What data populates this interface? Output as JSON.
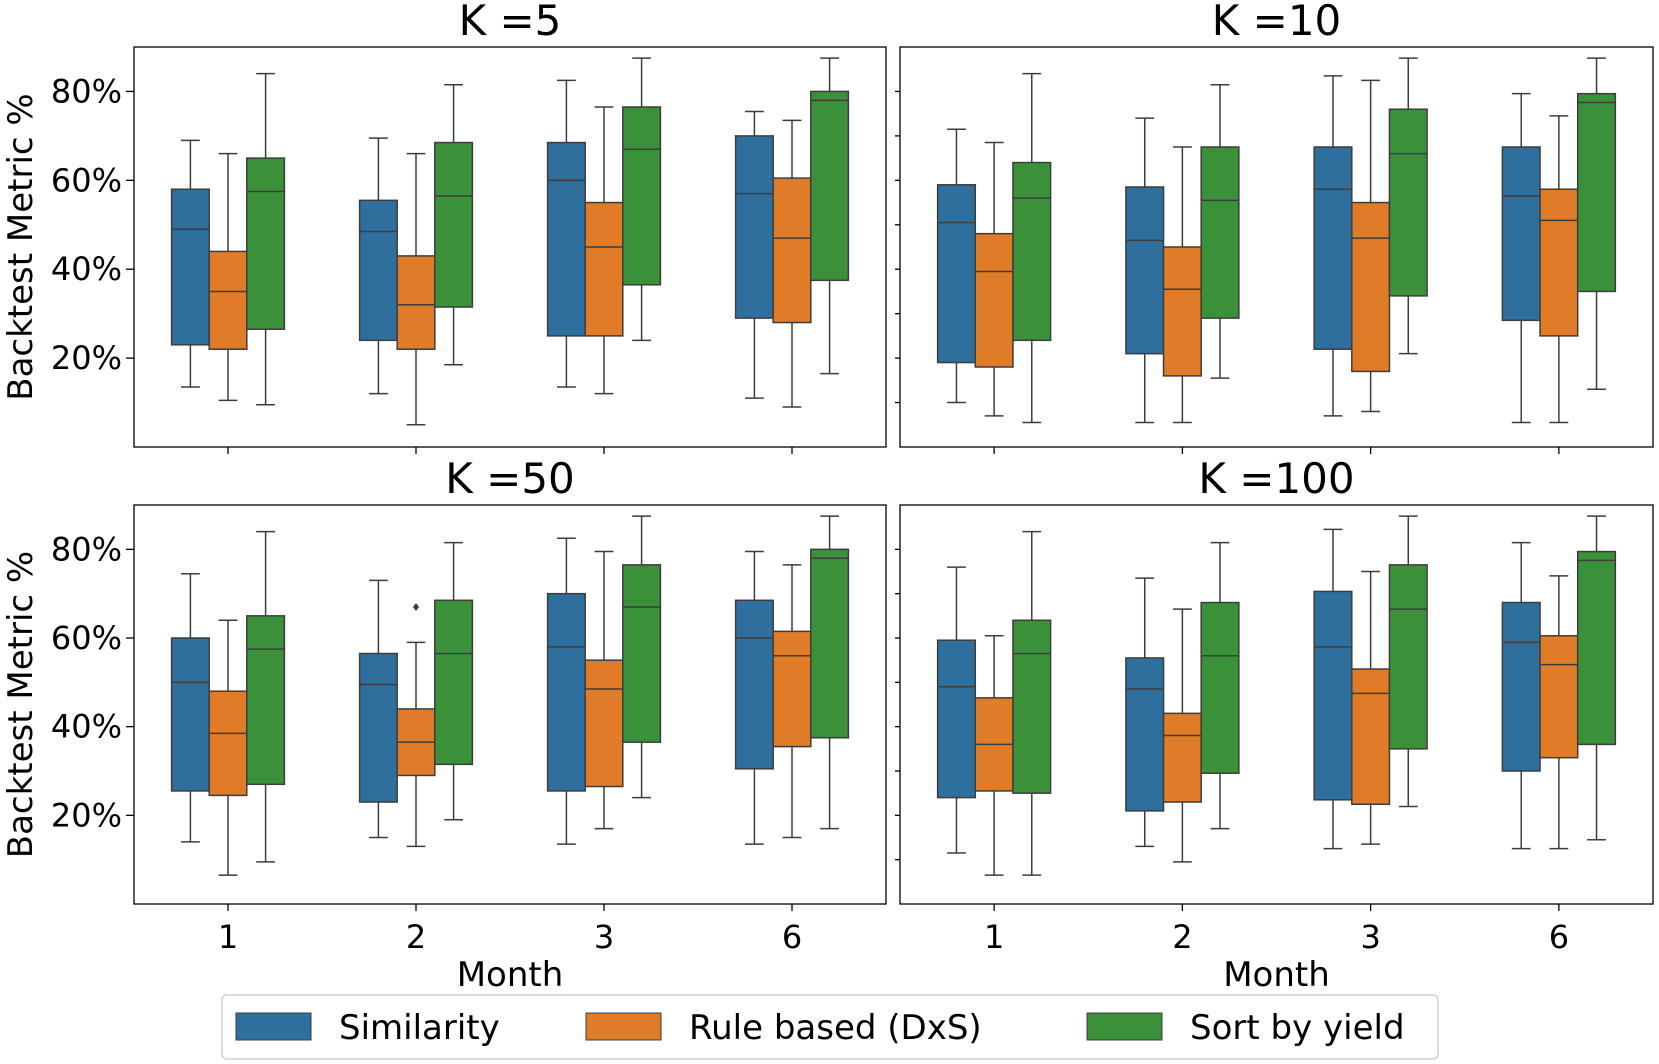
{
  "chart_data": {
    "type": "box",
    "ylabel": "Backtest Metric %",
    "xlabel": "Month",
    "categories": [
      "1",
      "2",
      "3",
      "6"
    ],
    "ylim": [
      0,
      90
    ],
    "yticks": [
      20,
      40,
      60,
      80
    ],
    "ytick_format": "{v}%",
    "colors": {
      "Similarity": "#2e6f9e",
      "Rule based (DxS)": "#e07b28",
      "Sort by yield": "#3a913a"
    },
    "series_names": [
      "Similarity",
      "Rule based (DxS)",
      "Sort by yield"
    ],
    "legend": {
      "placement": "bottom-center",
      "entries": [
        "Similarity",
        "Rule based (DxS)",
        "Sort by yield"
      ]
    },
    "panels": [
      {
        "title": "K =5",
        "boxes": [
          [
            {
              "whislo": 13.5,
              "q1": 23,
              "med": 49,
              "q3": 58,
              "whishi": 69
            },
            {
              "whislo": 10.5,
              "q1": 22,
              "med": 35,
              "q3": 44,
              "whishi": 66
            },
            {
              "whislo": 9.5,
              "q1": 26.5,
              "med": 57.5,
              "q3": 65,
              "whishi": 84
            }
          ],
          [
            {
              "whislo": 12,
              "q1": 24,
              "med": 48.5,
              "q3": 55.5,
              "whishi": 69.5
            },
            {
              "whislo": 5,
              "q1": 22,
              "med": 32,
              "q3": 43,
              "whishi": 66
            },
            {
              "whislo": 18.5,
              "q1": 31.5,
              "med": 56.5,
              "q3": 68.5,
              "whishi": 81.5
            }
          ],
          [
            {
              "whislo": 13.5,
              "q1": 25,
              "med": 60,
              "q3": 68.5,
              "whishi": 82.5
            },
            {
              "whislo": 12,
              "q1": 25,
              "med": 45,
              "q3": 55,
              "whishi": 76.5
            },
            {
              "whislo": 24,
              "q1": 36.5,
              "med": 67,
              "q3": 76.5,
              "whishi": 87.5
            }
          ],
          [
            {
              "whislo": 11,
              "q1": 29,
              "med": 57,
              "q3": 70,
              "whishi": 75.5
            },
            {
              "whislo": 9,
              "q1": 28,
              "med": 47,
              "q3": 60.5,
              "whishi": 73.5
            },
            {
              "whislo": 16.5,
              "q1": 37.5,
              "med": 78,
              "q3": 80,
              "whishi": 87.5
            }
          ]
        ],
        "outliers": []
      },
      {
        "title": "K =10",
        "boxes": [
          [
            {
              "whislo": 10,
              "q1": 19,
              "med": 50.5,
              "q3": 59,
              "whishi": 71.5
            },
            {
              "whislo": 7,
              "q1": 18,
              "med": 39.5,
              "q3": 48,
              "whishi": 68.5
            },
            {
              "whislo": 5.5,
              "q1": 24,
              "med": 56,
              "q3": 64,
              "whishi": 84
            }
          ],
          [
            {
              "whislo": 5.5,
              "q1": 21,
              "med": 46.5,
              "q3": 58.5,
              "whishi": 74
            },
            {
              "whislo": 5.5,
              "q1": 16,
              "med": 35.5,
              "q3": 45,
              "whishi": 67.5
            },
            {
              "whislo": 15.5,
              "q1": 29,
              "med": 55.5,
              "q3": 67.5,
              "whishi": 81.5
            }
          ],
          [
            {
              "whislo": 7,
              "q1": 22,
              "med": 58,
              "q3": 67.5,
              "whishi": 83.5
            },
            {
              "whislo": 8,
              "q1": 17,
              "med": 47,
              "q3": 55,
              "whishi": 82.5
            },
            {
              "whislo": 21,
              "q1": 34,
              "med": 66,
              "q3": 76,
              "whishi": 87.5
            }
          ],
          [
            {
              "whislo": 5.5,
              "q1": 28.5,
              "med": 56.5,
              "q3": 67.5,
              "whishi": 79.5
            },
            {
              "whislo": 5.5,
              "q1": 25,
              "med": 51,
              "q3": 58,
              "whishi": 74.5
            },
            {
              "whislo": 13,
              "q1": 35,
              "med": 77.5,
              "q3": 79.5,
              "whishi": 87.5
            }
          ]
        ],
        "outliers": []
      },
      {
        "title": "K =50",
        "boxes": [
          [
            {
              "whislo": 14,
              "q1": 25.5,
              "med": 50,
              "q3": 60,
              "whishi": 74.5
            },
            {
              "whislo": 6.5,
              "q1": 24.5,
              "med": 38.5,
              "q3": 48,
              "whishi": 64
            },
            {
              "whislo": 9.5,
              "q1": 27,
              "med": 57.5,
              "q3": 65,
              "whishi": 84
            }
          ],
          [
            {
              "whislo": 15,
              "q1": 23,
              "med": 49.5,
              "q3": 56.5,
              "whishi": 73
            },
            {
              "whislo": 13,
              "q1": 29,
              "med": 36.5,
              "q3": 44,
              "whishi": 59
            },
            {
              "whislo": 19,
              "q1": 31.5,
              "med": 56.5,
              "q3": 68.5,
              "whishi": 81.5
            }
          ],
          [
            {
              "whislo": 13.5,
              "q1": 25.5,
              "med": 58,
              "q3": 70,
              "whishi": 82.5
            },
            {
              "whislo": 17,
              "q1": 26.5,
              "med": 48.5,
              "q3": 55,
              "whishi": 79.5
            },
            {
              "whislo": 24,
              "q1": 36.5,
              "med": 67,
              "q3": 76.5,
              "whishi": 87.5
            }
          ],
          [
            {
              "whislo": 13.5,
              "q1": 30.5,
              "med": 60,
              "q3": 68.5,
              "whishi": 79.5
            },
            {
              "whislo": 15,
              "q1": 35.5,
              "med": 56,
              "q3": 61.5,
              "whishi": 76.5
            },
            {
              "whislo": 17,
              "q1": 37.5,
              "med": 78,
              "q3": 80,
              "whishi": 87.5
            }
          ]
        ],
        "outliers": [
          {
            "group": 1,
            "series": 1,
            "value": 67
          }
        ]
      },
      {
        "title": "K =100",
        "boxes": [
          [
            {
              "whislo": 11.5,
              "q1": 24,
              "med": 49,
              "q3": 59.5,
              "whishi": 76
            },
            {
              "whislo": 6.5,
              "q1": 25.5,
              "med": 36,
              "q3": 46.5,
              "whishi": 60.5
            },
            {
              "whislo": 6.5,
              "q1": 25,
              "med": 56.5,
              "q3": 64,
              "whishi": 84
            }
          ],
          [
            {
              "whislo": 13,
              "q1": 21,
              "med": 48.5,
              "q3": 55.5,
              "whishi": 73.5
            },
            {
              "whislo": 9.5,
              "q1": 23,
              "med": 38,
              "q3": 43,
              "whishi": 66.5
            },
            {
              "whislo": 17,
              "q1": 29.5,
              "med": 56,
              "q3": 68,
              "whishi": 81.5
            }
          ],
          [
            {
              "whislo": 12.5,
              "q1": 23.5,
              "med": 58,
              "q3": 70.5,
              "whishi": 84.5
            },
            {
              "whislo": 13.5,
              "q1": 22.5,
              "med": 47.5,
              "q3": 53,
              "whishi": 75
            },
            {
              "whislo": 22,
              "q1": 35,
              "med": 66.5,
              "q3": 76.5,
              "whishi": 87.5
            }
          ],
          [
            {
              "whislo": 12.5,
              "q1": 30,
              "med": 59,
              "q3": 68,
              "whishi": 81.5
            },
            {
              "whislo": 12.5,
              "q1": 33,
              "med": 54,
              "q3": 60.5,
              "whishi": 74
            },
            {
              "whislo": 14.5,
              "q1": 36,
              "med": 77.5,
              "q3": 79.5,
              "whishi": 87.5
            }
          ]
        ],
        "outliers": []
      }
    ]
  }
}
